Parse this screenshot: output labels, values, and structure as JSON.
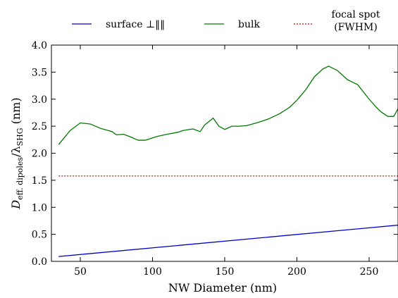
{
  "chart_data": {
    "type": "line",
    "title": "",
    "xlabel": "NW Diameter (nm)",
    "ylabel": {
      "base": "D",
      "sub1": "eff. dipoles",
      "slash": "/λ",
      "sub2": "SHG",
      "unit": " (nm)"
    },
    "xlim": [
      30,
      270
    ],
    "ylim": [
      0.0,
      4.0
    ],
    "xticks": [
      50,
      100,
      150,
      200,
      250
    ],
    "xtick_labels": [
      "50",
      "100",
      "150",
      "200",
      "250"
    ],
    "yticks": [
      0.0,
      0.5,
      1.0,
      1.5,
      2.0,
      2.5,
      3.0,
      3.5,
      4.0
    ],
    "ytick_labels": [
      "0.0",
      "0.5",
      "1.0",
      "1.5",
      "2.0",
      "2.5",
      "3.0",
      "3.5",
      "4.0"
    ],
    "grid": false,
    "legend_position": "top-outside",
    "series": [
      {
        "name": "surface ⊥‖‖",
        "color": "#0000cc",
        "style": "solid",
        "x": [
          35,
          270
        ],
        "y": [
          0.09,
          0.67
        ]
      },
      {
        "name": "bulk",
        "color": "#007a00",
        "style": "solid",
        "x": [
          35,
          43,
          50,
          57,
          64,
          72,
          75,
          80,
          85,
          90,
          95,
          103,
          110,
          118,
          121,
          128,
          133,
          136,
          142,
          146,
          150,
          155,
          160,
          165,
          172,
          180,
          188,
          195,
          200,
          206,
          212,
          218,
          222,
          228,
          235,
          242,
          250,
          255,
          258,
          263,
          267,
          270
        ],
        "y": [
          2.16,
          2.42,
          2.56,
          2.54,
          2.46,
          2.4,
          2.34,
          2.35,
          2.3,
          2.24,
          2.24,
          2.31,
          2.35,
          2.39,
          2.42,
          2.45,
          2.4,
          2.52,
          2.65,
          2.5,
          2.44,
          2.5,
          2.5,
          2.51,
          2.56,
          2.63,
          2.73,
          2.85,
          2.98,
          3.17,
          3.41,
          3.56,
          3.61,
          3.53,
          3.36,
          3.27,
          3.0,
          2.85,
          2.77,
          2.68,
          2.68,
          2.82
        ]
      },
      {
        "name": "focal spot\n(FWHM)",
        "color": "#ee0000",
        "style": "dotted",
        "x": [
          35,
          270
        ],
        "y": [
          1.58,
          1.58
        ]
      }
    ]
  }
}
